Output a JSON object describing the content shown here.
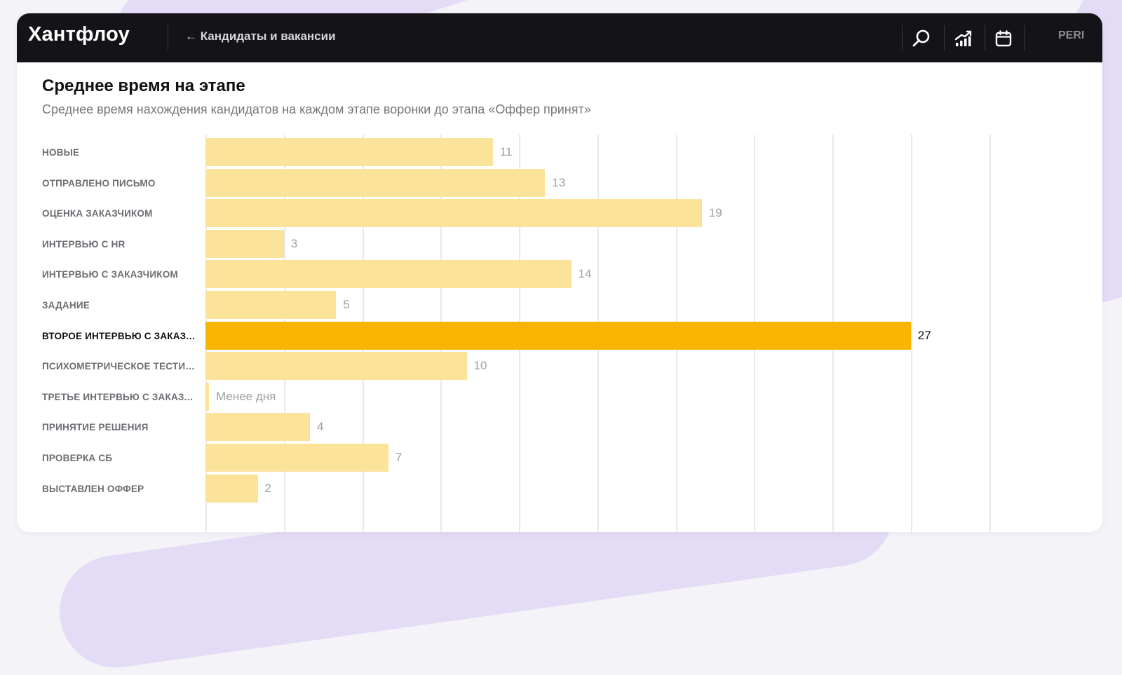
{
  "app": {
    "logo": "Хантфлоу",
    "back_link": "← Кандидаты и вакансии",
    "user": "PERI",
    "icons": [
      "search-icon",
      "analytics-icon",
      "calendar-icon"
    ]
  },
  "page": {
    "title": "Среднее время на этапе",
    "subtitle": "Среднее время нахождения кандидатов на каждом этапе воронки до этапа «Оффер принят»"
  },
  "colors": {
    "bar": "#fbe39a",
    "bar_highlight": "#f7b500",
    "topbar": "#141317"
  },
  "chart_data": {
    "type": "bar",
    "orientation": "horizontal",
    "categories": [
      "НОВЫЕ",
      "ОТПРАВЛЕНО ПИСЬМО",
      "ОЦЕНКА ЗАКАЗЧИКОМ",
      "ИНТЕРВЬЮ С HR",
      "ИНТЕРВЬЮ С ЗАКАЗЧИКОМ",
      "ЗАДАНИЕ",
      "ВТОРОЕ ИНТЕРВЬЮ С ЗАКАЗЧ...",
      "ПСИХОМЕТРИЧЕСКОЕ ТЕСТИР...",
      "ТРЕТЬЕ ИНТЕРВЬЮ С ЗАКАЗЧ...",
      "ПРИНЯТИЕ РЕШЕНИЯ",
      "ПРОВЕРКА СБ",
      "ВЫСТАВЛЕН ОФФЕР"
    ],
    "values": [
      11,
      13,
      19,
      3,
      14,
      5,
      27,
      10,
      0.1,
      4,
      7,
      2
    ],
    "value_labels": [
      "11",
      "13",
      "19",
      "3",
      "14",
      "5",
      "27",
      "10",
      "Менее дня",
      "4",
      "7",
      "2"
    ],
    "highlight_index": 6,
    "xlim": [
      0,
      30
    ],
    "grid_step": 3,
    "grid": true
  }
}
